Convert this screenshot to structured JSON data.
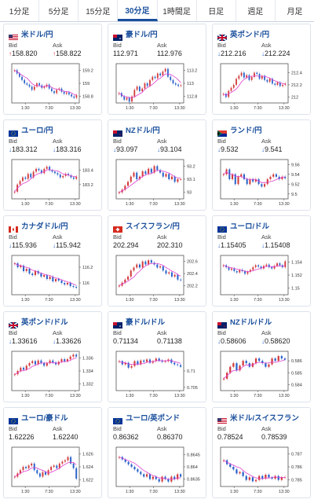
{
  "tabs": [
    {
      "label": "1分足",
      "active": false
    },
    {
      "label": "5分足",
      "active": false
    },
    {
      "label": "15分足",
      "active": false
    },
    {
      "label": "30分足",
      "active": true
    },
    {
      "label": "1時間足",
      "active": false
    },
    {
      "label": "日足",
      "active": false
    },
    {
      "label": "週足",
      "active": false
    },
    {
      "label": "月足",
      "active": false
    }
  ],
  "labels": {
    "bid": "Bid",
    "ask": "Ask"
  },
  "colors": {
    "accent": "#1a4f9c",
    "up": "#d23b3b",
    "down": "#2a62c9",
    "ma": "#e040d0"
  },
  "cards": [
    {
      "pair": "米ドル/円",
      "flag": "us-flag",
      "bid": "158.820",
      "ask": "158.822",
      "dir": "up"
    },
    {
      "pair": "豪ドル/円",
      "flag": "au-flag",
      "bid": "112.971",
      "ask": "112.976",
      "dir": "none"
    },
    {
      "pair": "英ポンド/円",
      "flag": "uk-flag",
      "bid": "212.216",
      "ask": "212.224",
      "dir": "down"
    },
    {
      "pair": "ユーロ/円",
      "flag": "eu-flag",
      "bid": "183.312",
      "ask": "183.316",
      "dir": "down"
    },
    {
      "pair": "NZドル/円",
      "flag": "nz-flag",
      "bid": "93.097",
      "ask": "93.104",
      "dir": "down"
    },
    {
      "pair": "ランド/円",
      "flag": "za-flag",
      "bid": "9.532",
      "ask": "9.541",
      "dir": "down"
    },
    {
      "pair": "カナダドル/円",
      "flag": "ca-flag",
      "bid": "115.936",
      "ask": "115.942",
      "dir": "down"
    },
    {
      "pair": "スイスフラン/円",
      "flag": "ch-flag",
      "bid": "202.294",
      "ask": "202.310",
      "dir": "none"
    },
    {
      "pair": "ユーロ/ドル",
      "flag": "eu-flag",
      "bid": "1.15405",
      "ask": "1.15408",
      "dir": "down"
    },
    {
      "pair": "英ポンド/ドル",
      "flag": "uk-flag",
      "bid": "1.33616",
      "ask": "1.33626",
      "dir": "down"
    },
    {
      "pair": "豪ドル/ドル",
      "flag": "au-flag",
      "bid": "0.71134",
      "ask": "0.71138",
      "dir": "none"
    },
    {
      "pair": "NZドル/ドル",
      "flag": "nz-flag",
      "bid": "0.58606",
      "ask": "0.58620",
      "dir": "down"
    },
    {
      "pair": "ユーロ/豪ドル",
      "flag": "eu-flag",
      "bid": "1.62226",
      "ask": "1.62240",
      "dir": "none"
    },
    {
      "pair": "ユーロ/英ポンド",
      "flag": "eu-flag",
      "bid": "0.86362",
      "ask": "0.86370",
      "dir": "none"
    },
    {
      "pair": "米ドル/スイスフラン",
      "flag": "us-flag",
      "bid": "0.78524",
      "ask": "0.78539",
      "dir": "none"
    }
  ],
  "chart_data": [
    {
      "type": "candlestick",
      "x_ticks": [
        "1:30",
        "7:30",
        "13:30"
      ],
      "y_ticks": [
        "159.2",
        "159",
        "158.8"
      ],
      "ylim": [
        158.7,
        159.3
      ],
      "close": [
        159.2,
        159.15,
        159.1,
        159.05,
        159.0,
        158.98,
        158.95,
        158.9,
        158.95,
        159.0,
        158.97,
        158.93,
        158.95,
        158.98,
        158.92,
        158.88,
        158.85,
        158.9,
        158.92,
        158.87,
        158.84,
        158.86,
        158.83,
        158.8,
        158.78,
        158.82
      ]
    },
    {
      "type": "candlestick",
      "x_ticks": [
        "1:30",
        "7:30",
        "13:30"
      ],
      "y_ticks": [
        "113.2",
        "113",
        "112.8"
      ],
      "ylim": [
        112.7,
        113.3
      ],
      "close": [
        112.85,
        112.8,
        112.75,
        112.78,
        112.72,
        112.8,
        112.9,
        112.95,
        112.88,
        112.92,
        113.0,
        112.96,
        113.05,
        113.1,
        113.08,
        113.15,
        113.12,
        113.18,
        113.22,
        113.1,
        113.05,
        113.0,
        112.98,
        112.96,
        112.97
      ]
    },
    {
      "type": "candlestick",
      "x_ticks": [
        "1:30",
        "7:30",
        "13:30"
      ],
      "y_ticks": [
        "212.4",
        "212.2",
        "212"
      ],
      "ylim": [
        211.9,
        212.55
      ],
      "close": [
        212.05,
        212.0,
        212.1,
        212.15,
        212.2,
        212.3,
        212.35,
        212.4,
        212.32,
        212.36,
        212.28,
        212.33,
        212.4,
        212.38,
        212.3,
        212.35,
        212.28,
        212.25,
        212.3,
        212.22,
        212.2,
        212.24,
        212.18,
        212.2,
        212.22
      ]
    },
    {
      "type": "candlestick",
      "x_ticks": [
        "1:30",
        "7:30",
        "13:30"
      ],
      "y_ticks": [
        "183.4",
        "183.2"
      ],
      "ylim": [
        183.0,
        183.55
      ],
      "close": [
        183.1,
        183.2,
        183.25,
        183.3,
        183.28,
        183.35,
        183.3,
        183.38,
        183.42,
        183.4,
        183.36,
        183.42,
        183.45,
        183.4,
        183.38,
        183.36,
        183.34,
        183.3,
        183.32,
        183.35,
        183.33,
        183.3,
        183.28,
        183.31
      ]
    },
    {
      "type": "candlestick",
      "x_ticks": [
        "1:30",
        "7:30",
        "13:30"
      ],
      "y_ticks": [
        "93.2",
        "93.1",
        "93"
      ],
      "ylim": [
        92.95,
        93.25
      ],
      "close": [
        93.0,
        93.02,
        93.05,
        93.08,
        93.12,
        93.15,
        93.1,
        93.12,
        93.16,
        93.14,
        93.18,
        93.15,
        93.2,
        93.17,
        93.15,
        93.12,
        93.14,
        93.1,
        93.12,
        93.08,
        93.1,
        93.1
      ]
    },
    {
      "type": "candlestick",
      "x_ticks": [
        "1:30",
        "7:30",
        "13:30"
      ],
      "y_ticks": [
        "9.56",
        "9.54",
        "9.52",
        "9.5"
      ],
      "ylim": [
        9.49,
        9.57
      ],
      "close": [
        9.54,
        9.55,
        9.53,
        9.54,
        9.52,
        9.535,
        9.54,
        9.53,
        9.52,
        9.53,
        9.525,
        9.53,
        9.52,
        9.515,
        9.52,
        9.53,
        9.535,
        9.54,
        9.535,
        9.53,
        9.535,
        9.532
      ]
    },
    {
      "type": "candlestick",
      "x_ticks": [
        "1:30",
        "7:30",
        "13:30"
      ],
      "y_ticks": [
        "116.2",
        "116"
      ],
      "ylim": [
        115.85,
        116.35
      ],
      "close": [
        116.25,
        116.2,
        116.22,
        116.15,
        116.18,
        116.12,
        116.1,
        116.15,
        116.12,
        116.08,
        116.1,
        116.05,
        116.08,
        116.02,
        116.05,
        116.03,
        116.0,
        115.98,
        116.0,
        115.96,
        115.95,
        115.94
      ]
    },
    {
      "type": "candlestick",
      "x_ticks": [
        "1:30",
        "7:30",
        "13:30"
      ],
      "y_ticks": [
        "202.6",
        "202.4",
        "202.2"
      ],
      "ylim": [
        202.05,
        202.7
      ],
      "close": [
        202.2,
        202.25,
        202.3,
        202.35,
        202.45,
        202.5,
        202.55,
        202.5,
        202.6,
        202.55,
        202.62,
        202.58,
        202.55,
        202.5,
        202.52,
        202.45,
        202.4,
        202.42,
        202.35,
        202.38,
        202.3,
        202.29
      ]
    },
    {
      "type": "candlestick",
      "x_ticks": [
        "1:30",
        "7:30",
        "13:30"
      ],
      "y_ticks": [
        "1.154",
        "1.152",
        "1.15"
      ],
      "ylim": [
        1.149,
        1.155
      ],
      "close": [
        1.1535,
        1.1532,
        1.1528,
        1.153,
        1.1526,
        1.1524,
        1.1528,
        1.1526,
        1.1522,
        1.1525,
        1.1528,
        1.1532,
        1.1535,
        1.1533,
        1.153,
        1.1534,
        1.1536,
        1.1532,
        1.153,
        1.1534,
        1.1538,
        1.1535,
        1.1532,
        1.1541
      ]
    },
    {
      "type": "candlestick",
      "x_ticks": [
        "1:30",
        "7:30",
        "13:30"
      ],
      "y_ticks": [
        "1.336",
        "1.334",
        "1.332"
      ],
      "ylim": [
        1.331,
        1.337
      ],
      "close": [
        1.3335,
        1.334,
        1.3345,
        1.3342,
        1.3348,
        1.3352,
        1.3355,
        1.335,
        1.3356,
        1.3352,
        1.3348,
        1.3352,
        1.3356,
        1.3353,
        1.335,
        1.3354,
        1.3358,
        1.3355,
        1.3358,
        1.3362,
        1.3365,
        1.3362
      ]
    },
    {
      "type": "candlestick",
      "x_ticks": [
        "1:30",
        "7:30",
        "13:30"
      ],
      "y_ticks": [
        "0.71",
        "0.705"
      ],
      "ylim": [
        0.704,
        0.716
      ],
      "close": [
        0.713,
        0.712,
        0.7125,
        0.711,
        0.7115,
        0.713,
        0.712,
        0.7132,
        0.7128,
        0.7135,
        0.7125,
        0.713,
        0.7138,
        0.7132,
        0.7128,
        0.713,
        0.7135,
        0.7125,
        0.712,
        0.7118,
        0.7113
      ]
    },
    {
      "type": "candlestick",
      "x_ticks": [
        "1:30",
        "7:30",
        "13:30"
      ],
      "y_ticks": [
        "0.586",
        "0.585",
        "0.584"
      ],
      "ylim": [
        0.5835,
        0.5868
      ],
      "close": [
        0.5845,
        0.585,
        0.5855,
        0.5858,
        0.5852,
        0.5856,
        0.586,
        0.5858,
        0.5855,
        0.5858,
        0.5862,
        0.586,
        0.5858,
        0.5855,
        0.5857,
        0.5862,
        0.586,
        0.5864,
        0.5862,
        0.5861
      ]
    },
    {
      "type": "candlestick",
      "x_ticks": [
        "1:30",
        "7:30",
        "13:30"
      ],
      "y_ticks": [
        "1.626",
        "1.624",
        "1.622"
      ],
      "ylim": [
        1.621,
        1.627
      ],
      "close": [
        1.6225,
        1.623,
        1.6235,
        1.624,
        1.6238,
        1.6242,
        1.6245,
        1.6235,
        1.623,
        1.6225,
        1.6232,
        1.6228,
        1.6235,
        1.624,
        1.6242,
        1.6238,
        1.6245,
        1.6248,
        1.625,
        1.6255,
        1.6245,
        1.6238,
        1.6222
      ]
    },
    {
      "type": "candlestick",
      "x_ticks": [
        "1:30",
        "7:30",
        "13:30"
      ],
      "y_ticks": [
        "0.8645",
        "0.864",
        "0.8635"
      ],
      "ylim": [
        0.8632,
        0.8648
      ],
      "close": [
        0.8644,
        0.8643,
        0.8642,
        0.8641,
        0.864,
        0.8639,
        0.8638,
        0.8637,
        0.8636,
        0.8637,
        0.8635,
        0.8636,
        0.8635,
        0.8634,
        0.8636,
        0.8635,
        0.8634,
        0.8636,
        0.8635,
        0.8637,
        0.8636
      ]
    },
    {
      "type": "candlestick",
      "x_ticks": [
        "1:30",
        "7:30",
        "13:30"
      ],
      "y_ticks": [
        "0.787",
        "0.786",
        "0.785"
      ],
      "ylim": [
        0.7845,
        0.7875
      ],
      "close": [
        0.7865,
        0.7862,
        0.786,
        0.7858,
        0.7855,
        0.7856,
        0.7853,
        0.785,
        0.7852,
        0.7849,
        0.785,
        0.7853,
        0.7851,
        0.7854,
        0.7852,
        0.7851,
        0.7853,
        0.785,
        0.7852,
        0.7852
      ]
    }
  ]
}
